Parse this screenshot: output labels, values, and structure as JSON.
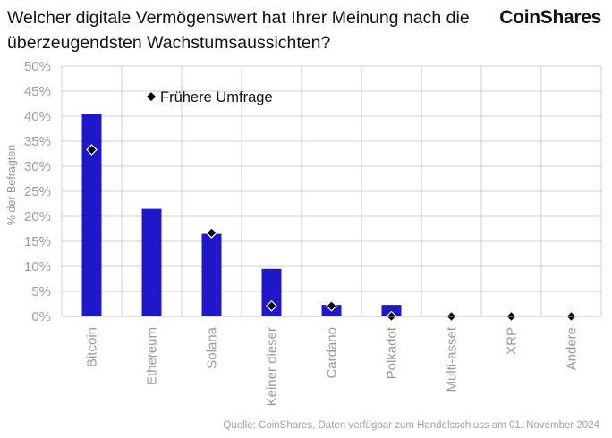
{
  "title": "Welcher digitale Vermögenswert hat Ihrer Meinung nach die überzeugendsten Wachstumsaussichten?",
  "brand": "CoinShares",
  "source": "Quelle: CoinShares, Daten verfügbar zum Handelsschluss am 01. November 2024",
  "colors": {
    "bar": "#1f18c8",
    "marker": "#000000",
    "grid": "#cfcfcf",
    "tick_text": "#9a9a9a"
  },
  "chart_data": {
    "type": "bar",
    "title": "Welcher digitale Vermögenswert hat Ihrer Meinung nach die überzeugendsten Wachstumsaussichten?",
    "xlabel": "",
    "ylabel": "% der Befragten",
    "ylim": [
      0,
      50
    ],
    "y_ticks": [
      "0%",
      "5%",
      "10%",
      "15%",
      "20%",
      "25%",
      "30%",
      "35%",
      "40%",
      "45%",
      "50%"
    ],
    "grid": true,
    "legend_position": "top-left",
    "categories": [
      "Bitcoin",
      "Ethereum",
      "Solana",
      "Keiner dieser",
      "Cardano",
      "Polkadot",
      "Multi-asset",
      "XRP",
      "Andere"
    ],
    "series": [
      {
        "values": [
          40.5,
          21.5,
          16.5,
          9.5,
          2.3,
          2.3,
          0,
          0,
          0
        ]
      },
      {
        "name": "Frühere Umfrage",
        "marker": "diamond",
        "values": [
          33.3,
          null,
          16.7,
          2.1,
          2.1,
          0,
          0,
          0,
          0
        ]
      }
    ]
  }
}
